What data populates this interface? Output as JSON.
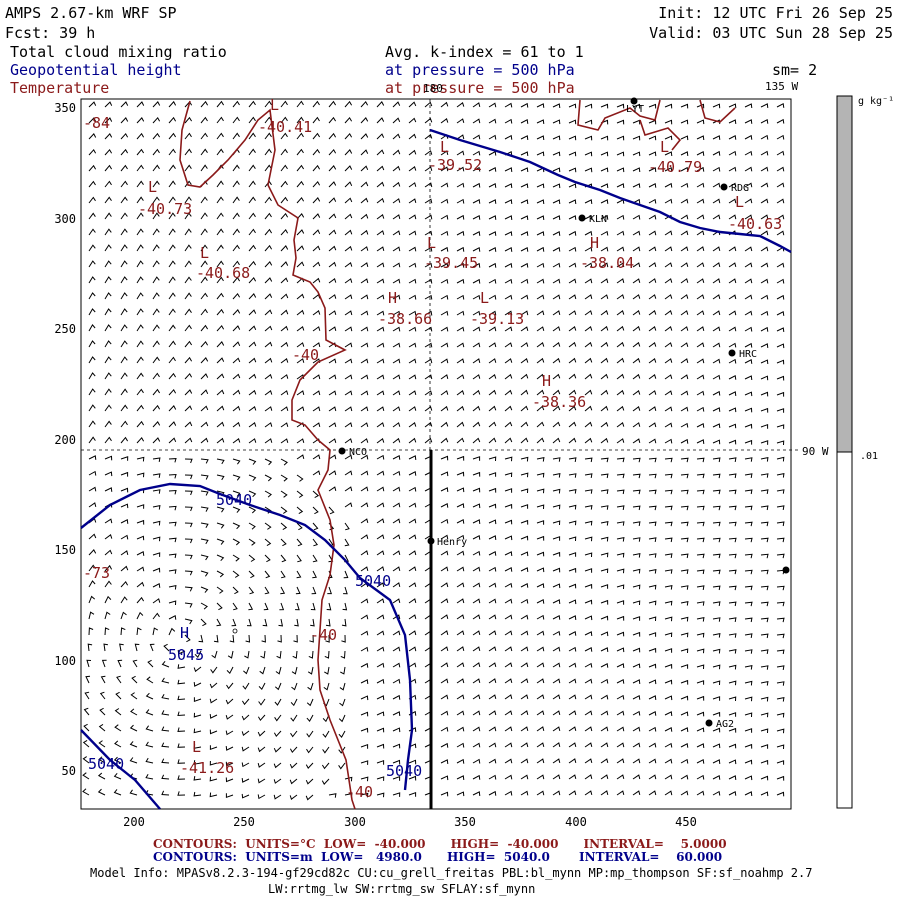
{
  "header": {
    "model": "AMPS 2.67-km WRF SP",
    "forecast": "Fcst:   39 h",
    "init": "Init: 12 UTC Fri 26 Sep 25",
    "valid": "Valid: 03 UTC Sun 28 Sep 25",
    "field1": "Total cloud mixing ratio",
    "field2": "Geopotential height",
    "field3": "Temperature",
    "avg": "Avg. k-index =  61 to   1",
    "pressure1": "at pressure =  500 hPa",
    "pressure2": "at pressure =  500 hPa",
    "sm": "sm= 2",
    "lon135": "135 W",
    "lon90": "90 W",
    "lon180": "180"
  },
  "colorbar": {
    "units": "g kg⁻¹",
    "tick": ".01",
    "fill_fraction": 0.5,
    "fill_color": "#b4b4b4"
  },
  "axes": {
    "xticks": [
      "200",
      "250",
      "300",
      "350",
      "400",
      "450"
    ],
    "yticks": [
      "350",
      "300",
      "250",
      "200",
      "150",
      "100",
      "50"
    ]
  },
  "stations": [
    "LYT",
    "RDG",
    "KLN",
    "HRC",
    "NCO",
    "Henry",
    "AG2"
  ],
  "labels": {
    "temp": [
      "L",
      "-40.41",
      "L",
      "-39.52",
      "L",
      "-40.79",
      "L",
      "-40.73",
      "L",
      "-40.63",
      "L",
      "-39.45",
      "H",
      "-38.04",
      "L",
      "-40.68",
      "H",
      "-38.66",
      "L",
      "-39.13",
      "-40",
      "H",
      "-38.36",
      "-40",
      "L",
      "-41.26",
      "-40",
      "-84",
      "-73"
    ],
    "height": [
      "5040",
      "5040",
      "H",
      "5045",
      "5040",
      "5040"
    ]
  },
  "footer": {
    "contours_t": "CONTOURS:  UNITS=°C  LOW=  -40.000      HIGH=  -40.000      INTERVAL=    5.0000",
    "contours_h": "CONTOURS:  UNITS=m  LOW=   4980.0      HIGH=  5040.0       INTERVAL=    60.000",
    "model_info": "Model Info: MPASv8.2.3-194-gf29cd82c CU:cu_grell_freitas PBL:bl_mynn MP:mp_thompson SF:sf_noahmp 2.7",
    "model_info2": "LW:rrtmg_lw SW:rrtmg_sw SFLAY:sf_mynn"
  },
  "colors": {
    "temperature": "#8b1a1a",
    "height": "#00008b",
    "cloud": "#b4b4b4",
    "text": "#000000"
  }
}
